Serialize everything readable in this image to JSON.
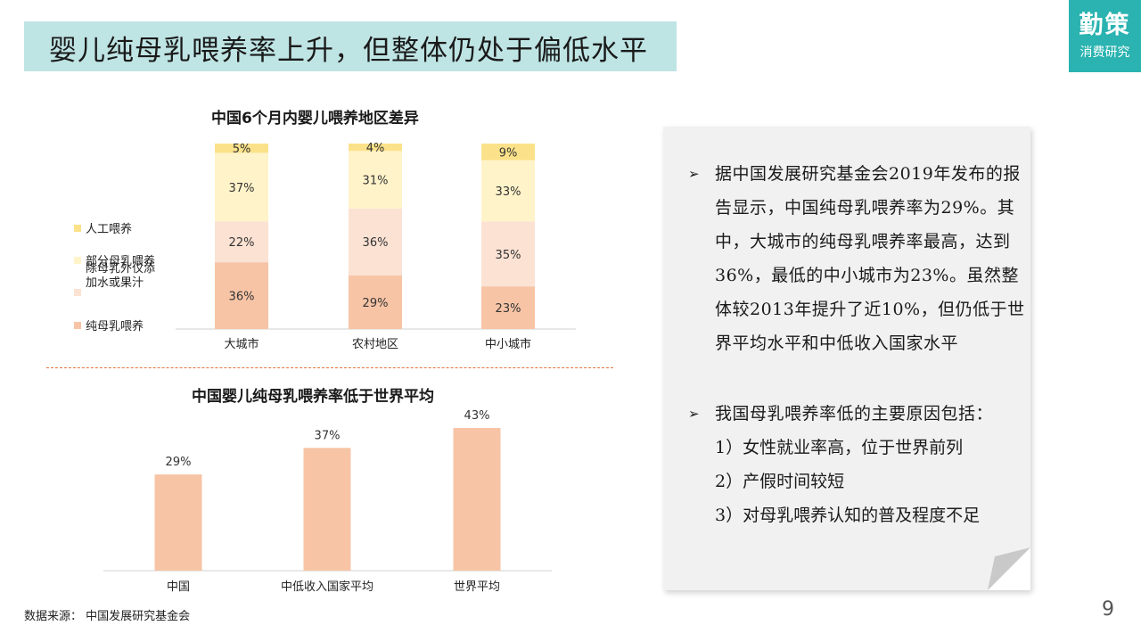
{
  "header": {
    "title": "婴儿纯母乳喂养率上升，但整体仍处于偏低水平"
  },
  "logo": {
    "main": "勤策",
    "sub": "消费研究"
  },
  "chart_data": [
    {
      "type": "bar",
      "stacked": true,
      "title": "中国6个月内婴儿喂养地区差异",
      "categories": [
        "大城市",
        "农村地区",
        "中小城市"
      ],
      "series": [
        {
          "name": "纯母乳喂养",
          "values": [
            36,
            29,
            23
          ],
          "color": "#f7c4a6"
        },
        {
          "name": "除母乳外仅添加水或果汁",
          "values": [
            22,
            36,
            35
          ],
          "color": "#fbe2d3"
        },
        {
          "name": "部分母乳喂养",
          "values": [
            37,
            31,
            33
          ],
          "color": "#fff3c9"
        },
        {
          "name": "人工喂养",
          "values": [
            5,
            4,
            9
          ],
          "color": "#fbe28a"
        }
      ],
      "value_suffix": "%",
      "ylim": [
        0,
        100
      ],
      "grid": false,
      "legend": "left"
    },
    {
      "type": "bar",
      "title": "中国婴儿纯母乳喂养率低于世界平均",
      "categories": [
        "中国",
        "中低收入国家平均",
        "世界平均"
      ],
      "values": [
        29,
        37,
        43
      ],
      "value_suffix": "%",
      "color": "#f7c4a6",
      "ylim": [
        0,
        50
      ],
      "grid": false
    }
  ],
  "notes": {
    "bullet_1": "据中国发展研究基金会2019年发布的报告显示，中国纯母乳喂养率为29%。其中，大城市的纯母乳喂养率最高，达到36%，最低的中小城市为23%。虽然整体较2013年提升了近10%，但仍低于世界平均水平和中低收入国家水平",
    "bullet_2": "我国母乳喂养率低的主要原因包括：",
    "sub_items": [
      "1）女性就业率高，位于世界前列",
      "2）产假时间较短",
      "3）对母乳喂养认知的普及程度不足"
    ]
  },
  "footer": {
    "source": "数据来源：  中国发展研究基金会",
    "page": "9"
  }
}
